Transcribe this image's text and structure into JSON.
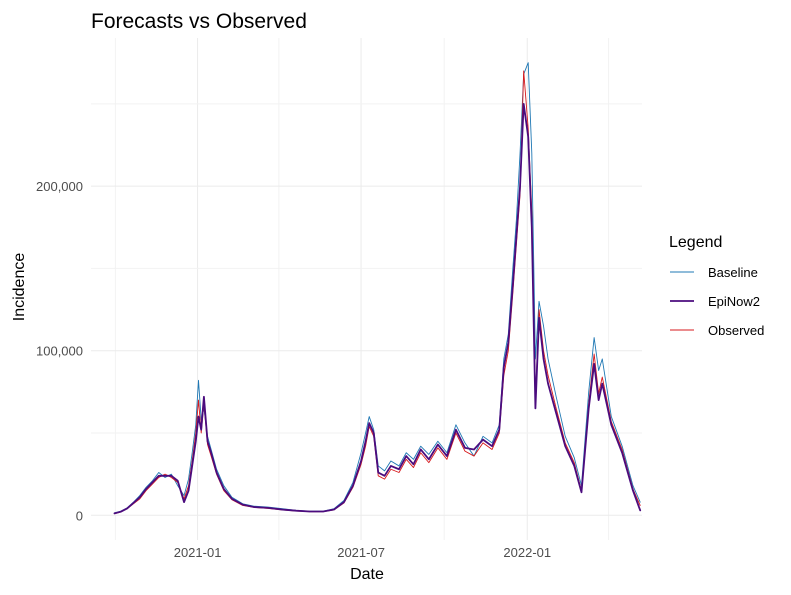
{
  "chart_data": {
    "type": "line",
    "title": "Forecasts vs Observed",
    "xlabel": "Date",
    "ylabel": "Incidence",
    "x_ticks": [
      "2021-01",
      "2021-07",
      "2022-01"
    ],
    "y_ticks": [
      0,
      100000,
      200000
    ],
    "y_tick_labels": [
      "0",
      "100,000",
      "200,000"
    ],
    "xlim": [
      "2020-09-05",
      "2022-05-08"
    ],
    "ylim": [
      -15000,
      290000
    ],
    "grid": true,
    "legend": {
      "title": "Legend",
      "position": "right",
      "entries": [
        "Baseline",
        "EpiNow2",
        "Observed"
      ]
    },
    "series": [
      {
        "name": "Baseline",
        "color": "#1f78b4",
        "stroke_width": 0.9,
        "points": [
          [
            "2020-10-01",
            1500
          ],
          [
            "2020-10-08",
            2500
          ],
          [
            "2020-10-15",
            4500
          ],
          [
            "2020-10-22",
            8000
          ],
          [
            "2020-10-29",
            12000
          ],
          [
            "2020-11-05",
            17000
          ],
          [
            "2020-11-12",
            21000
          ],
          [
            "2020-11-19",
            26000
          ],
          [
            "2020-11-26",
            23000
          ],
          [
            "2020-12-03",
            25000
          ],
          [
            "2020-12-10",
            18000
          ],
          [
            "2020-12-17",
            12000
          ],
          [
            "2020-12-22",
            22000
          ],
          [
            "2020-12-26",
            38000
          ],
          [
            "2020-12-30",
            55000
          ],
          [
            "2021-01-02",
            82000
          ],
          [
            "2021-01-05",
            58000
          ],
          [
            "2021-01-08",
            65000
          ],
          [
            "2021-01-12",
            48000
          ],
          [
            "2021-01-16",
            40000
          ],
          [
            "2021-01-22",
            28000
          ],
          [
            "2021-01-30",
            18000
          ],
          [
            "2021-02-08",
            11000
          ],
          [
            "2021-02-20",
            7000
          ],
          [
            "2021-03-05",
            5500
          ],
          [
            "2021-03-20",
            5000
          ],
          [
            "2021-04-05",
            4000
          ],
          [
            "2021-04-20",
            3000
          ],
          [
            "2021-05-05",
            2500
          ],
          [
            "2021-05-20",
            2500
          ],
          [
            "2021-06-01",
            4000
          ],
          [
            "2021-06-12",
            9000
          ],
          [
            "2021-06-22",
            20000
          ],
          [
            "2021-07-01",
            38000
          ],
          [
            "2021-07-06",
            50000
          ],
          [
            "2021-07-10",
            60000
          ],
          [
            "2021-07-15",
            52000
          ],
          [
            "2021-07-20",
            30000
          ],
          [
            "2021-07-27",
            27000
          ],
          [
            "2021-08-03",
            33000
          ],
          [
            "2021-08-12",
            30000
          ],
          [
            "2021-08-20",
            38000
          ],
          [
            "2021-08-28",
            34000
          ],
          [
            "2021-09-05",
            42000
          ],
          [
            "2021-09-14",
            37000
          ],
          [
            "2021-09-24",
            45000
          ],
          [
            "2021-10-04",
            38000
          ],
          [
            "2021-10-14",
            55000
          ],
          [
            "2021-10-24",
            44000
          ],
          [
            "2021-11-03",
            36000
          ],
          [
            "2021-11-13",
            48000
          ],
          [
            "2021-11-23",
            44000
          ],
          [
            "2021-12-01",
            55000
          ],
          [
            "2021-12-06",
            95000
          ],
          [
            "2021-12-11",
            110000
          ],
          [
            "2021-12-16",
            150000
          ],
          [
            "2021-12-20",
            180000
          ],
          [
            "2021-12-24",
            220000
          ],
          [
            "2021-12-28",
            268000
          ],
          [
            "2022-01-02",
            275000
          ],
          [
            "2022-01-06",
            220000
          ],
          [
            "2022-01-10",
            95000
          ],
          [
            "2022-01-14",
            130000
          ],
          [
            "2022-01-19",
            115000
          ],
          [
            "2022-01-24",
            95000
          ],
          [
            "2022-02-02",
            72000
          ],
          [
            "2022-02-12",
            48000
          ],
          [
            "2022-02-22",
            35000
          ],
          [
            "2022-03-02",
            18000
          ],
          [
            "2022-03-10",
            75000
          ],
          [
            "2022-03-16",
            108000
          ],
          [
            "2022-03-21",
            88000
          ],
          [
            "2022-03-25",
            95000
          ],
          [
            "2022-04-04",
            60000
          ],
          [
            "2022-04-16",
            42000
          ],
          [
            "2022-04-28",
            18000
          ],
          [
            "2022-05-06",
            8000
          ]
        ]
      },
      {
        "name": "EpiNow2",
        "color": "#4b0c7e",
        "stroke_width": 1.8,
        "points": [
          [
            "2020-10-01",
            1200
          ],
          [
            "2020-10-08",
            2200
          ],
          [
            "2020-10-15",
            4200
          ],
          [
            "2020-10-22",
            7500
          ],
          [
            "2020-10-29",
            11000
          ],
          [
            "2020-11-05",
            16000
          ],
          [
            "2020-11-12",
            20000
          ],
          [
            "2020-11-19",
            24000
          ],
          [
            "2020-11-26",
            24000
          ],
          [
            "2020-12-03",
            24000
          ],
          [
            "2020-12-10",
            21000
          ],
          [
            "2020-12-17",
            8000
          ],
          [
            "2020-12-22",
            15000
          ],
          [
            "2020-12-26",
            30000
          ],
          [
            "2020-12-30",
            45000
          ],
          [
            "2021-01-02",
            60000
          ],
          [
            "2021-01-05",
            52000
          ],
          [
            "2021-01-08",
            72000
          ],
          [
            "2021-01-12",
            45000
          ],
          [
            "2021-01-16",
            38000
          ],
          [
            "2021-01-22",
            26000
          ],
          [
            "2021-01-30",
            16000
          ],
          [
            "2021-02-08",
            10000
          ],
          [
            "2021-02-20",
            6500
          ],
          [
            "2021-03-05",
            5000
          ],
          [
            "2021-03-20",
            4500
          ],
          [
            "2021-04-05",
            3500
          ],
          [
            "2021-04-20",
            2800
          ],
          [
            "2021-05-05",
            2300
          ],
          [
            "2021-05-20",
            2300
          ],
          [
            "2021-06-01",
            3500
          ],
          [
            "2021-06-12",
            8000
          ],
          [
            "2021-06-22",
            18000
          ],
          [
            "2021-07-01",
            33000
          ],
          [
            "2021-07-06",
            45000
          ],
          [
            "2021-07-10",
            56000
          ],
          [
            "2021-07-15",
            50000
          ],
          [
            "2021-07-20",
            26000
          ],
          [
            "2021-07-27",
            24000
          ],
          [
            "2021-08-03",
            30000
          ],
          [
            "2021-08-12",
            28000
          ],
          [
            "2021-08-20",
            36000
          ],
          [
            "2021-08-28",
            31000
          ],
          [
            "2021-09-05",
            40000
          ],
          [
            "2021-09-14",
            34000
          ],
          [
            "2021-09-24",
            43000
          ],
          [
            "2021-10-04",
            36000
          ],
          [
            "2021-10-14",
            52000
          ],
          [
            "2021-10-24",
            41000
          ],
          [
            "2021-11-03",
            40000
          ],
          [
            "2021-11-13",
            46000
          ],
          [
            "2021-11-23",
            42000
          ],
          [
            "2021-12-01",
            52000
          ],
          [
            "2021-12-06",
            90000
          ],
          [
            "2021-12-11",
            105000
          ],
          [
            "2021-12-16",
            140000
          ],
          [
            "2021-12-20",
            170000
          ],
          [
            "2021-12-24",
            200000
          ],
          [
            "2021-12-28",
            250000
          ],
          [
            "2022-01-02",
            230000
          ],
          [
            "2022-01-06",
            175000
          ],
          [
            "2022-01-10",
            65000
          ],
          [
            "2022-01-14",
            120000
          ],
          [
            "2022-01-19",
            95000
          ],
          [
            "2022-01-24",
            80000
          ],
          [
            "2022-02-02",
            62000
          ],
          [
            "2022-02-12",
            42000
          ],
          [
            "2022-02-22",
            30000
          ],
          [
            "2022-03-02",
            14000
          ],
          [
            "2022-03-10",
            65000
          ],
          [
            "2022-03-16",
            92000
          ],
          [
            "2022-03-21",
            70000
          ],
          [
            "2022-03-25",
            80000
          ],
          [
            "2022-04-04",
            55000
          ],
          [
            "2022-04-16",
            38000
          ],
          [
            "2022-04-28",
            15000
          ],
          [
            "2022-05-06",
            3000
          ]
        ]
      },
      {
        "name": "Observed",
        "color": "#d7191c",
        "stroke_width": 0.9,
        "points": [
          [
            "2020-10-01",
            1000
          ],
          [
            "2020-10-08",
            2000
          ],
          [
            "2020-10-15",
            4000
          ],
          [
            "2020-10-22",
            7000
          ],
          [
            "2020-10-29",
            10000
          ],
          [
            "2020-11-05",
            15000
          ],
          [
            "2020-11-12",
            19000
          ],
          [
            "2020-11-19",
            23000
          ],
          [
            "2020-11-26",
            25000
          ],
          [
            "2020-12-03",
            23000
          ],
          [
            "2020-12-10",
            20000
          ],
          [
            "2020-12-17",
            10000
          ],
          [
            "2020-12-22",
            18000
          ],
          [
            "2020-12-26",
            33000
          ],
          [
            "2020-12-30",
            50000
          ],
          [
            "2021-01-02",
            70000
          ],
          [
            "2021-01-05",
            50000
          ],
          [
            "2021-01-08",
            68000
          ],
          [
            "2021-01-12",
            43000
          ],
          [
            "2021-01-16",
            36000
          ],
          [
            "2021-01-22",
            25000
          ],
          [
            "2021-01-30",
            15000
          ],
          [
            "2021-02-08",
            9500
          ],
          [
            "2021-02-20",
            6000
          ],
          [
            "2021-03-05",
            4800
          ],
          [
            "2021-03-20",
            4200
          ],
          [
            "2021-04-05",
            3300
          ],
          [
            "2021-04-20",
            2600
          ],
          [
            "2021-05-05",
            2200
          ],
          [
            "2021-05-20",
            2200
          ],
          [
            "2021-06-01",
            3300
          ],
          [
            "2021-06-12",
            7500
          ],
          [
            "2021-06-22",
            17000
          ],
          [
            "2021-07-01",
            31000
          ],
          [
            "2021-07-06",
            42000
          ],
          [
            "2021-07-10",
            54000
          ],
          [
            "2021-07-15",
            48000
          ],
          [
            "2021-07-20",
            24000
          ],
          [
            "2021-07-27",
            22000
          ],
          [
            "2021-08-03",
            28000
          ],
          [
            "2021-08-12",
            26000
          ],
          [
            "2021-08-20",
            34000
          ],
          [
            "2021-08-28",
            29000
          ],
          [
            "2021-09-05",
            38000
          ],
          [
            "2021-09-14",
            32000
          ],
          [
            "2021-09-24",
            41000
          ],
          [
            "2021-10-04",
            34000
          ],
          [
            "2021-10-14",
            50000
          ],
          [
            "2021-10-24",
            39000
          ],
          [
            "2021-11-03",
            36000
          ],
          [
            "2021-11-13",
            44000
          ],
          [
            "2021-11-23",
            40000
          ],
          [
            "2021-12-01",
            50000
          ],
          [
            "2021-12-06",
            85000
          ],
          [
            "2021-12-11",
            100000
          ],
          [
            "2021-12-16",
            135000
          ],
          [
            "2021-12-20",
            165000
          ],
          [
            "2021-12-24",
            195000
          ],
          [
            "2021-12-28",
            270000
          ],
          [
            "2022-01-02",
            235000
          ],
          [
            "2022-01-06",
            185000
          ],
          [
            "2022-01-10",
            70000
          ],
          [
            "2022-01-14",
            125000
          ],
          [
            "2022-01-19",
            100000
          ],
          [
            "2022-01-24",
            85000
          ],
          [
            "2022-02-02",
            65000
          ],
          [
            "2022-02-12",
            44000
          ],
          [
            "2022-02-22",
            32000
          ],
          [
            "2022-03-02",
            15000
          ],
          [
            "2022-03-10",
            68000
          ],
          [
            "2022-03-16",
            98000
          ],
          [
            "2022-03-21",
            74000
          ],
          [
            "2022-03-25",
            84000
          ],
          [
            "2022-04-04",
            57000
          ],
          [
            "2022-04-16",
            40000
          ],
          [
            "2022-04-28",
            16000
          ],
          [
            "2022-05-06",
            6000
          ]
        ]
      }
    ]
  }
}
